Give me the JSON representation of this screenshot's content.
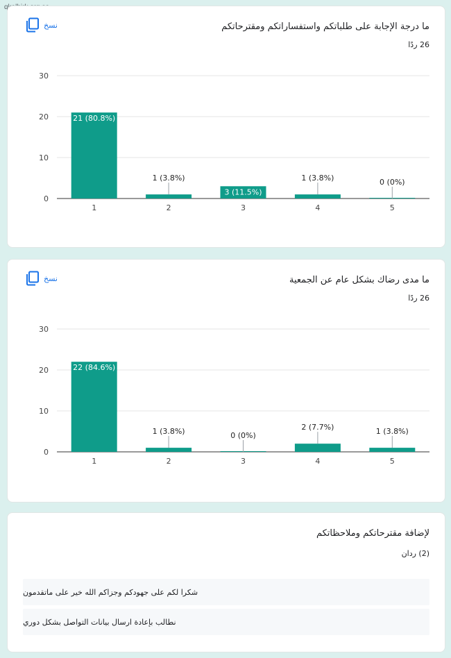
{
  "watermark": "qkalbirk.org.sa",
  "copy_label": "نسخ",
  "icons": {
    "copy": "copy-icon"
  },
  "colors": {
    "bar": "#0f9c8a",
    "grid": "#e6e6e6",
    "axis": "#333333",
    "link": "#1a73e8"
  },
  "questions": [
    {
      "title": "ما درجة الإجابة على طلباتكم واستفساراتكم ومقترحاتكم",
      "count": "26 ردًا",
      "chart_data": {
        "type": "bar",
        "categories": [
          "1",
          "2",
          "3",
          "4",
          "5"
        ],
        "values": [
          21,
          1,
          3,
          1,
          0
        ],
        "labels": [
          "21 (80.8%)",
          "1 (3.8%)",
          "3 (11.5%)",
          "1 (3.8%)",
          "0 (0%)"
        ],
        "ylim": [
          0,
          30
        ],
        "yticks": [
          "0",
          "10",
          "20",
          "30"
        ],
        "grid": true
      }
    },
    {
      "title": "ما مدى رضاك بشكل عام عن الجمعية",
      "count": "26 ردًا",
      "chart_data": {
        "type": "bar",
        "categories": [
          "1",
          "2",
          "3",
          "4",
          "5"
        ],
        "values": [
          22,
          1,
          0,
          2,
          1
        ],
        "labels": [
          "22 (84.6%)",
          "1 (3.8%)",
          "0 (0%)",
          "2 (7.7%)",
          "1 (3.8%)"
        ],
        "ylim": [
          0,
          30
        ],
        "yticks": [
          "0",
          "10",
          "20",
          "30"
        ],
        "grid": true
      }
    }
  ],
  "text_question": {
    "title": "لإضافة مقترحاتكم وملاحظاتكم",
    "count": "(2) ردان",
    "responses": [
      "شكرا لكم على جهودكم وجزاكم الله خير على ماتقدمون",
      "نطالب بإعادة ارسال بيانات التواصل بشكل دوري"
    ]
  }
}
